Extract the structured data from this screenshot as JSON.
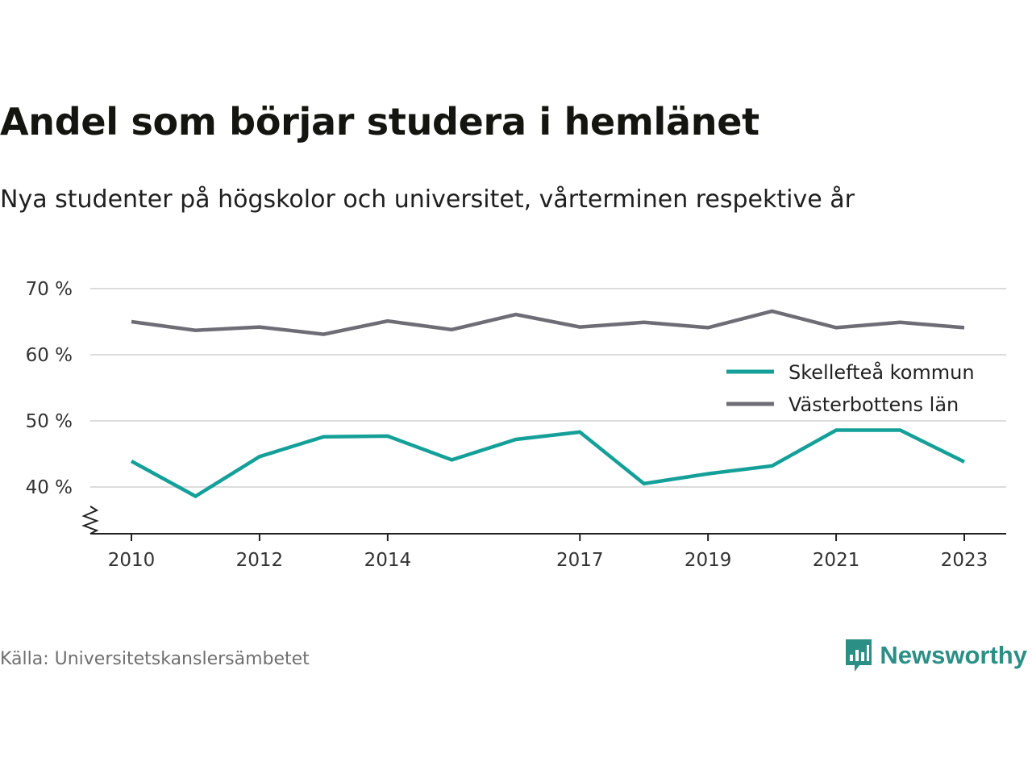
{
  "title": "Andel som börjar studera i hemlänet",
  "subtitle": "Nya studenter på högskolor och universitet, vårterminen respektive år",
  "source": "Källa: Universitetskanslersämbetet",
  "brand": {
    "name": "Newsworthy",
    "icon": "newsworthy-logo-icon",
    "color": "#2b8f86"
  },
  "chart_data": {
    "type": "line",
    "x": [
      2010,
      2011,
      2012,
      2013,
      2014,
      2015,
      2016,
      2017,
      2018,
      2019,
      2020,
      2021,
      2022,
      2023
    ],
    "x_tick_values": [
      2010,
      2012,
      2014,
      2017,
      2019,
      2021,
      2023
    ],
    "x_tick_labels": [
      "2010",
      "2012",
      "2014",
      "2017",
      "2019",
      "2021",
      "2023"
    ],
    "y_ticks": [
      40,
      50,
      60,
      70
    ],
    "y_tick_labels": [
      "40 %",
      "50 %",
      "60 %",
      "70 %"
    ],
    "ylim": [
      33,
      70
    ],
    "y_axis_break": true,
    "grid": true,
    "legend_position": "right",
    "series": [
      {
        "name": "Skellefteå kommun",
        "color": "#14a099",
        "values": [
          43.9,
          38.6,
          44.6,
          47.6,
          47.7,
          44.1,
          47.2,
          48.3,
          40.5,
          42.0,
          43.2,
          48.6,
          48.6,
          43.8
        ]
      },
      {
        "name": "Västerbottens län",
        "color": "#6e6d76",
        "values": [
          65.0,
          63.7,
          64.2,
          63.1,
          65.1,
          63.8,
          66.1,
          64.2,
          64.9,
          64.1,
          66.6,
          64.1,
          64.9,
          64.1
        ]
      }
    ]
  }
}
